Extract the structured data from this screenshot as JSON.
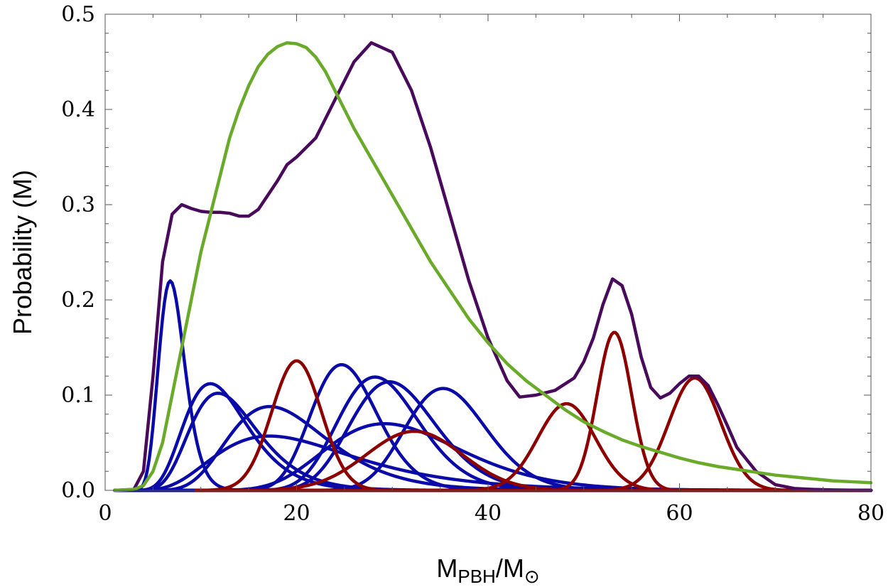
{
  "chart_data": {
    "type": "line",
    "title": "",
    "xlabel": {
      "main": "M",
      "sub1": "PBH",
      "sep": "/M",
      "sub2": "⊙"
    },
    "ylabel": "Probability (M)",
    "xlim": [
      0,
      80
    ],
    "ylim": [
      0,
      0.5
    ],
    "x_ticks": [
      0,
      20,
      40,
      60,
      80
    ],
    "x_tick_labels": [
      "0",
      "20",
      "40",
      "60",
      "80"
    ],
    "y_ticks": [
      0,
      0.1,
      0.2,
      0.3,
      0.4,
      0.5
    ],
    "y_tick_labels": [
      "0.0",
      "0.1",
      "0.2",
      "0.3",
      "0.4",
      "0.5"
    ],
    "grid": false,
    "colors": {
      "blue": "#0a0aa8",
      "red": "#8c0000",
      "purple": "#4a0a5c",
      "green": "#6aaa2a"
    },
    "series": [
      {
        "name": "blue-1",
        "color": "blue",
        "shape": "lognormal",
        "peak_x": 6.8,
        "peak_y": 0.22,
        "sigma": 0.2
      },
      {
        "name": "blue-2",
        "color": "blue",
        "shape": "lognormal",
        "peak_x": 11.0,
        "peak_y": 0.112,
        "sigma": 0.3
      },
      {
        "name": "blue-3",
        "color": "blue",
        "shape": "lognormal",
        "peak_x": 11.8,
        "peak_y": 0.102,
        "sigma": 0.3
      },
      {
        "name": "blue-4",
        "color": "blue",
        "shape": "lognormal",
        "peak_x": 17.2,
        "peak_y": 0.088,
        "sigma": 0.3
      },
      {
        "name": "blue-5",
        "color": "blue",
        "shape": "lognormal",
        "peak_x": 17.2,
        "peak_y": 0.057,
        "sigma": 0.42
      },
      {
        "name": "blue-6",
        "color": "blue",
        "shape": "lognormal",
        "peak_x": 24.7,
        "peak_y": 0.132,
        "sigma": 0.14
      },
      {
        "name": "blue-7",
        "color": "blue",
        "shape": "lognormal",
        "peak_x": 28.2,
        "peak_y": 0.119,
        "sigma": 0.15
      },
      {
        "name": "blue-8",
        "color": "blue",
        "shape": "lognormal",
        "peak_x": 29.7,
        "peak_y": 0.114,
        "sigma": 0.15
      },
      {
        "name": "blue-9",
        "color": "blue",
        "shape": "lognormal",
        "peak_x": 29.2,
        "peak_y": 0.07,
        "sigma": 0.24
      },
      {
        "name": "blue-10",
        "color": "blue",
        "shape": "lognormal",
        "peak_x": 35.3,
        "peak_y": 0.107,
        "sigma": 0.12
      },
      {
        "name": "red-1",
        "color": "red",
        "shape": "gaussian",
        "peak_x": 20.0,
        "peak_y": 0.136,
        "sigma": 2.6
      },
      {
        "name": "red-2",
        "color": "red",
        "shape": "gaussian",
        "peak_x": 32.3,
        "peak_y": 0.062,
        "sigma": 5.0
      },
      {
        "name": "red-3",
        "color": "red",
        "shape": "gaussian",
        "peak_x": 48.2,
        "peak_y": 0.091,
        "sigma": 3.0
      },
      {
        "name": "red-4",
        "color": "red",
        "shape": "gaussian",
        "peak_x": 53.2,
        "peak_y": 0.166,
        "sigma": 1.8
      },
      {
        "name": "red-5",
        "color": "red",
        "shape": "gaussian",
        "peak_x": 61.6,
        "peak_y": 0.118,
        "sigma": 2.7
      },
      {
        "name": "total",
        "color": "purple",
        "shape": "points",
        "x": [
          1,
          3,
          4,
          5,
          6,
          7,
          8,
          9,
          10,
          11,
          12,
          13,
          14,
          15,
          16,
          17,
          18,
          19,
          20,
          22,
          24,
          26,
          27.8,
          30,
          32,
          34,
          36,
          38,
          40,
          42,
          43.3,
          45,
          47,
          49,
          50,
          51,
          52,
          53,
          54,
          55,
          56,
          57,
          58,
          59,
          60,
          61,
          62,
          63,
          64,
          65,
          66,
          68,
          70,
          72,
          74,
          76,
          78,
          80
        ],
        "y": [
          0,
          0.001,
          0.02,
          0.12,
          0.24,
          0.29,
          0.3,
          0.296,
          0.293,
          0.292,
          0.292,
          0.291,
          0.288,
          0.288,
          0.295,
          0.31,
          0.325,
          0.342,
          0.35,
          0.37,
          0.41,
          0.45,
          0.47,
          0.46,
          0.42,
          0.36,
          0.29,
          0.22,
          0.16,
          0.115,
          0.098,
          0.1,
          0.105,
          0.118,
          0.135,
          0.16,
          0.195,
          0.222,
          0.215,
          0.185,
          0.14,
          0.108,
          0.097,
          0.102,
          0.112,
          0.12,
          0.12,
          0.11,
          0.09,
          0.068,
          0.045,
          0.02,
          0.006,
          0.002,
          0.001,
          0.0005,
          0.0002,
          0
        ]
      },
      {
        "name": "fit",
        "color": "green",
        "shape": "points",
        "x": [
          1,
          3,
          4,
          5,
          6,
          7,
          8,
          9,
          10,
          11,
          12,
          13,
          14,
          15,
          16,
          17,
          18,
          19,
          20,
          21,
          22,
          23,
          24,
          25,
          26,
          28,
          30,
          32,
          34,
          36,
          38,
          40,
          42,
          44,
          46,
          48,
          50,
          52,
          54,
          56,
          58,
          60,
          62,
          64,
          66,
          68,
          70,
          72,
          74,
          76,
          78,
          80
        ],
        "y": [
          0,
          0.001,
          0.005,
          0.02,
          0.05,
          0.1,
          0.15,
          0.2,
          0.25,
          0.29,
          0.33,
          0.37,
          0.4,
          0.425,
          0.445,
          0.458,
          0.466,
          0.47,
          0.469,
          0.465,
          0.455,
          0.44,
          0.42,
          0.4,
          0.38,
          0.345,
          0.31,
          0.275,
          0.24,
          0.21,
          0.18,
          0.155,
          0.133,
          0.115,
          0.1,
          0.085,
          0.072,
          0.062,
          0.053,
          0.046,
          0.04,
          0.034,
          0.029,
          0.025,
          0.022,
          0.019,
          0.016,
          0.014,
          0.012,
          0.01,
          0.009,
          0.008
        ]
      }
    ]
  }
}
